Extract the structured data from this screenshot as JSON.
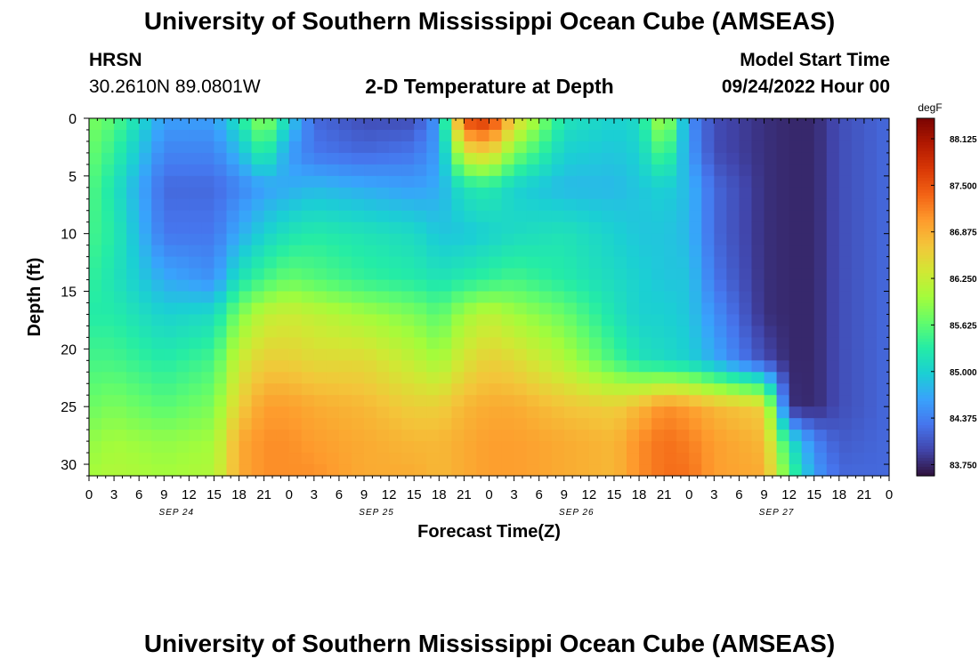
{
  "page": {
    "title_top": "University of Southern Mississippi Ocean Cube (AMSEAS)",
    "title_bottom": "University of Southern Mississippi Ocean Cube (AMSEAS)",
    "station": "HRSN",
    "coords": "30.2610N  89.0801W",
    "plot_title": "2-D Temperature at Depth",
    "model_start_label": "Model Start Time",
    "model_start_value": "09/24/2022 Hour 00"
  },
  "chart_data": {
    "type": "heatmap",
    "title": "2-D Temperature at Depth",
    "xlabel": "Forecast Time(Z)",
    "ylabel": "Depth (ft)",
    "x_hours_range": [
      0,
      96
    ],
    "x_step_hours": 1.5,
    "x_tick_step_hours": 3,
    "x_tick_labels": [
      "0",
      "3",
      "6",
      "9",
      "12",
      "15",
      "18",
      "21",
      "0",
      "3",
      "6",
      "9",
      "12",
      "15",
      "18",
      "21",
      "0",
      "3",
      "6",
      "9",
      "12",
      "15",
      "18",
      "21",
      "0",
      "3",
      "6",
      "9",
      "12",
      "15",
      "18",
      "21",
      "0"
    ],
    "date_labels": [
      {
        "text": "SEP 24",
        "hour": 10.5
      },
      {
        "text": "SEP 25",
        "hour": 34.5
      },
      {
        "text": "SEP 26",
        "hour": 58.5
      },
      {
        "text": "SEP 27",
        "hour": 82.5
      }
    ],
    "depth_range_ft": [
      0,
      31
    ],
    "y_ticks": [
      0,
      5,
      10,
      15,
      20,
      25,
      30
    ],
    "y_tick_labels": [
      "0",
      "5",
      "10",
      "15",
      "20",
      "25",
      "30"
    ],
    "colorbar": {
      "unit": "degF",
      "min": 83.6,
      "max": 88.4,
      "tick_values": [
        83.75,
        84.375,
        85.0,
        85.625,
        86.25,
        86.875,
        87.5,
        88.125
      ],
      "tick_labels": [
        "83.750",
        "84.375",
        "85.000",
        "85.625",
        "86.250",
        "86.875",
        "87.500",
        "88.125"
      ],
      "colors": [
        "#30123b",
        "#4145ab",
        "#4675ed",
        "#39a2fc",
        "#1bcfd4",
        "#24eca6",
        "#61fc6c",
        "#a4fc3b",
        "#d1e834",
        "#f3c63a",
        "#fe9b2d",
        "#f36315",
        "#d93806",
        "#b11901",
        "#7a0402"
      ]
    },
    "depth_rows": [
      0,
      3,
      6,
      10,
      14,
      17,
      21,
      25,
      28,
      31
    ],
    "time_columns_hours": [
      0,
      3,
      9,
      15,
      18,
      21,
      24,
      27,
      33,
      39,
      42,
      45,
      48,
      51,
      57,
      63,
      66,
      69,
      72,
      75,
      81,
      84,
      87,
      90,
      96
    ],
    "temperature_degF": [
      [
        85.8,
        85.6,
        84.6,
        84.6,
        85.2,
        86.0,
        85.0,
        84.2,
        84.0,
        84.0,
        84.6,
        87.6,
        87.8,
        86.6,
        85.2,
        85.0,
        85.1,
        86.2,
        84.5,
        84.0,
        83.8,
        83.75,
        83.75,
        84.0,
        84.2
      ],
      [
        85.7,
        85.4,
        84.4,
        84.4,
        84.8,
        85.4,
        84.6,
        84.3,
        84.2,
        84.3,
        84.6,
        86.4,
        86.6,
        85.8,
        85.0,
        84.9,
        85.0,
        85.6,
        84.6,
        84.0,
        83.8,
        83.75,
        83.75,
        84.0,
        84.2
      ],
      [
        85.6,
        85.2,
        84.2,
        84.2,
        84.4,
        84.6,
        84.7,
        84.8,
        84.7,
        84.6,
        84.7,
        85.2,
        85.3,
        85.0,
        84.8,
        84.8,
        84.9,
        85.0,
        84.8,
        84.2,
        83.8,
        83.75,
        83.75,
        84.0,
        84.2
      ],
      [
        85.5,
        85.3,
        84.3,
        84.3,
        84.7,
        85.0,
        85.2,
        85.3,
        85.2,
        85.1,
        84.9,
        84.9,
        85.0,
        85.1,
        85.2,
        85.0,
        84.9,
        84.9,
        84.8,
        84.2,
        83.8,
        83.75,
        83.75,
        84.0,
        84.2
      ],
      [
        85.4,
        85.2,
        84.7,
        84.5,
        85.2,
        85.5,
        85.7,
        85.6,
        85.4,
        85.3,
        85.2,
        85.3,
        85.4,
        85.5,
        85.3,
        85.1,
        85.0,
        84.9,
        84.9,
        84.3,
        83.8,
        83.75,
        83.75,
        84.0,
        84.2
      ],
      [
        85.3,
        85.3,
        85.0,
        85.1,
        85.8,
        86.2,
        86.3,
        86.2,
        86.0,
        85.8,
        85.6,
        86.0,
        86.2,
        86.0,
        85.7,
        85.2,
        85.0,
        85.0,
        84.9,
        84.5,
        83.8,
        83.75,
        83.75,
        84.0,
        84.2
      ],
      [
        85.5,
        85.5,
        85.3,
        85.5,
        86.3,
        86.6,
        86.6,
        86.5,
        86.5,
        86.2,
        86.0,
        86.4,
        86.6,
        86.5,
        86.1,
        85.5,
        85.2,
        85.1,
        85.0,
        84.7,
        84.0,
        83.75,
        83.75,
        84.0,
        84.2
      ],
      [
        85.7,
        85.8,
        85.6,
        85.8,
        86.6,
        87.0,
        87.0,
        86.9,
        86.8,
        86.6,
        86.6,
        86.8,
        86.9,
        86.9,
        86.7,
        86.6,
        86.8,
        87.1,
        87.0,
        86.8,
        86.6,
        83.8,
        83.75,
        84.0,
        84.2
      ],
      [
        85.9,
        86.0,
        85.9,
        86.0,
        86.9,
        87.1,
        87.1,
        87.0,
        86.9,
        86.8,
        86.8,
        86.9,
        87.0,
        87.0,
        86.9,
        86.8,
        87.1,
        87.3,
        87.2,
        87.0,
        86.8,
        85.2,
        84.4,
        84.1,
        84.2
      ],
      [
        86.0,
        86.1,
        86.0,
        86.1,
        86.9,
        87.1,
        87.1,
        87.1,
        86.9,
        86.9,
        86.8,
        86.9,
        87.0,
        87.0,
        86.9,
        86.8,
        87.1,
        87.3,
        87.3,
        87.0,
        86.9,
        85.6,
        84.6,
        84.2,
        84.2
      ]
    ]
  }
}
